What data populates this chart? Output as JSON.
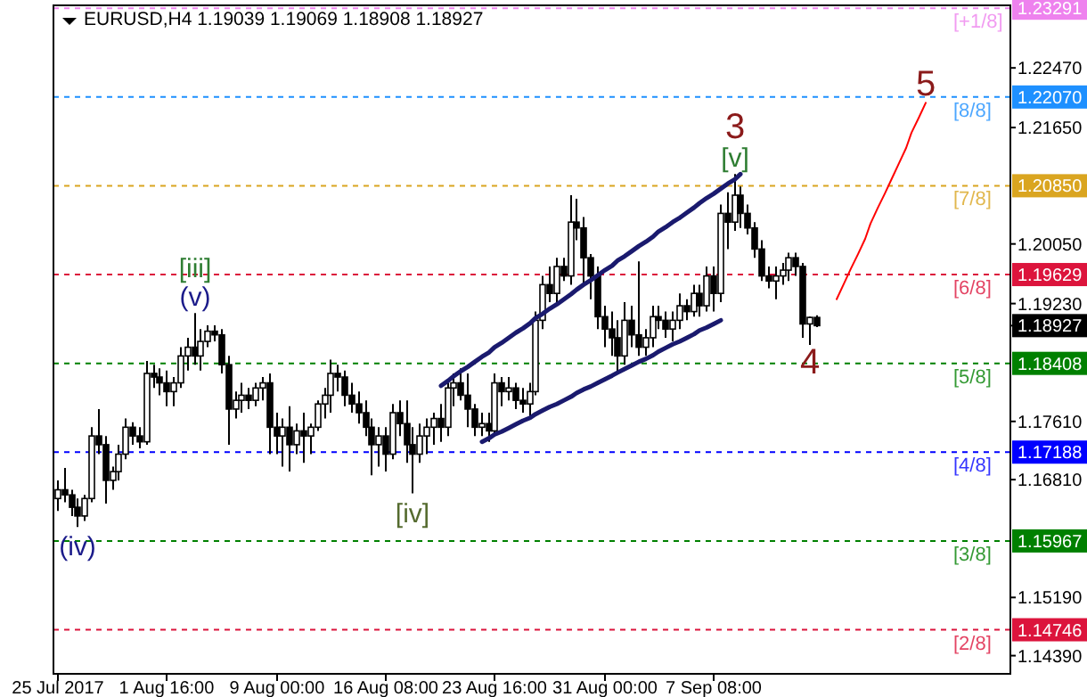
{
  "chart_data": {
    "type": "candlestick",
    "title": "EURUSD,H4  1.19039 1.19069 1.18908 1.18927",
    "color": "#000000",
    "grid": false,
    "categories": [
      "25 Jul 2017",
      null,
      null,
      null,
      null,
      null,
      null,
      null,
      null,
      null,
      null,
      null,
      null,
      null,
      null,
      null,
      "1 Aug 16:00",
      null,
      null,
      null,
      null,
      null,
      null,
      null,
      null,
      null,
      null,
      null,
      null,
      null,
      null,
      null,
      "9 Aug 00:00",
      null,
      null,
      null,
      null,
      null,
      null,
      null,
      null,
      null,
      null,
      null,
      null,
      null,
      null,
      null,
      "16 Aug 08:00",
      null,
      null,
      null,
      null,
      null,
      null,
      null,
      null,
      null,
      null,
      null,
      null,
      null,
      null,
      null,
      "23 Aug 16:00",
      null,
      null,
      null,
      null,
      null,
      null,
      null,
      null,
      null,
      null,
      null,
      null,
      null,
      null,
      null,
      "31 Aug 00:00",
      null,
      null,
      null,
      null,
      null,
      null,
      null,
      null,
      null,
      null,
      null,
      null,
      null,
      null,
      null,
      "7 Sep 08:00",
      null,
      null,
      null,
      null,
      null,
      null,
      null,
      null,
      null,
      null,
      null,
      null,
      null,
      null,
      null,
      null,
      null,
      null,
      null,
      null,
      null,
      null,
      null,
      null,
      null,
      null,
      null,
      null,
      null,
      null,
      null,
      null,
      null,
      null,
      null,
      null,
      null,
      null,
      null,
      null,
      null,
      null,
      null
    ],
    "ohlc": [
      [
        1.1655,
        1.168,
        1.1638,
        1.1667
      ],
      [
        1.1667,
        1.1697,
        1.165,
        1.166
      ],
      [
        1.166,
        1.1667,
        1.1631,
        1.1643
      ],
      [
        1.1643,
        1.1655,
        1.1616,
        1.1631
      ],
      [
        1.1631,
        1.166,
        1.1624,
        1.1655
      ],
      [
        1.1655,
        1.1753,
        1.165,
        1.1741
      ],
      [
        1.1741,
        1.1778,
        1.1716,
        1.1729
      ],
      [
        1.1729,
        1.1741,
        1.1648,
        1.168
      ],
      [
        1.168,
        1.1699,
        1.1667,
        1.1692
      ],
      [
        1.1692,
        1.1729,
        1.168,
        1.1716
      ],
      [
        1.1716,
        1.1765,
        1.1709,
        1.1753
      ],
      [
        1.1753,
        1.176,
        1.1729,
        1.1741
      ],
      [
        1.1741,
        1.1753,
        1.1724,
        1.1733
      ],
      [
        1.1733,
        1.1844,
        1.1729,
        1.1827
      ],
      [
        1.1827,
        1.1839,
        1.1807,
        1.1822
      ],
      [
        1.1822,
        1.1834,
        1.1797,
        1.1814
      ],
      [
        1.1814,
        1.1831,
        1.1782,
        1.1802
      ],
      [
        1.1802,
        1.1822,
        1.1782,
        1.1814
      ],
      [
        1.1814,
        1.1863,
        1.1807,
        1.1851
      ],
      [
        1.1851,
        1.1876,
        1.1831,
        1.1863
      ],
      [
        1.1863,
        1.191,
        1.1839,
        1.1851
      ],
      [
        1.1851,
        1.1888,
        1.1831,
        1.1871
      ],
      [
        1.1871,
        1.1893,
        1.1863,
        1.1885
      ],
      [
        1.1885,
        1.1893,
        1.1871,
        1.188
      ],
      [
        1.188,
        1.1888,
        1.1827,
        1.1839
      ],
      [
        1.1839,
        1.1851,
        1.1729,
        1.1778
      ],
      [
        1.1778,
        1.1802,
        1.1765,
        1.179
      ],
      [
        1.179,
        1.1814,
        1.1773,
        1.1797
      ],
      [
        1.1797,
        1.1807,
        1.1778,
        1.179
      ],
      [
        1.179,
        1.1814,
        1.1782,
        1.1807
      ],
      [
        1.1807,
        1.1822,
        1.179,
        1.1814
      ],
      [
        1.1814,
        1.1827,
        1.1716,
        1.1753
      ],
      [
        1.1753,
        1.1773,
        1.1716,
        1.1741
      ],
      [
        1.1741,
        1.1765,
        1.1699,
        1.1753
      ],
      [
        1.1753,
        1.1782,
        1.1692,
        1.1729
      ],
      [
        1.1729,
        1.1758,
        1.1716,
        1.1748
      ],
      [
        1.1748,
        1.1773,
        1.1704,
        1.1741
      ],
      [
        1.1741,
        1.1758,
        1.1716,
        1.1753
      ],
      [
        1.1753,
        1.179,
        1.1748,
        1.1785
      ],
      [
        1.1785,
        1.1807,
        1.1765,
        1.1797
      ],
      [
        1.1797,
        1.1846,
        1.1773,
        1.1827
      ],
      [
        1.1827,
        1.1839,
        1.1802,
        1.1822
      ],
      [
        1.1822,
        1.1831,
        1.1782,
        1.1797
      ],
      [
        1.1797,
        1.1814,
        1.1773,
        1.1785
      ],
      [
        1.1785,
        1.1802,
        1.1758,
        1.1773
      ],
      [
        1.1773,
        1.179,
        1.1741,
        1.1753
      ],
      [
        1.1753,
        1.1765,
        1.1687,
        1.1729
      ],
      [
        1.1729,
        1.1753,
        1.1699,
        1.1741
      ],
      [
        1.1741,
        1.1753,
        1.1692,
        1.1716
      ],
      [
        1.1716,
        1.1785,
        1.1709,
        1.1773
      ],
      [
        1.1773,
        1.179,
        1.1741,
        1.1758
      ],
      [
        1.1758,
        1.179,
        1.1704,
        1.1729
      ],
      [
        1.1729,
        1.1753,
        1.1662,
        1.1716
      ],
      [
        1.1716,
        1.1758,
        1.1704,
        1.1741
      ],
      [
        1.1741,
        1.1765,
        1.1716,
        1.1753
      ],
      [
        1.1753,
        1.1773,
        1.1729,
        1.1765
      ],
      [
        1.1765,
        1.1785,
        1.1733,
        1.1753
      ],
      [
        1.1753,
        1.1814,
        1.1741,
        1.1807
      ],
      [
        1.1807,
        1.1827,
        1.1782,
        1.1814
      ],
      [
        1.1814,
        1.1834,
        1.179,
        1.1797
      ],
      [
        1.1797,
        1.1827,
        1.1753,
        1.1778
      ],
      [
        1.1778,
        1.1785,
        1.1741,
        1.1753
      ],
      [
        1.1753,
        1.1773,
        1.1741,
        1.1758
      ],
      [
        1.1758,
        1.1773,
        1.1733,
        1.1748
      ],
      [
        1.1748,
        1.1827,
        1.1741,
        1.1814
      ],
      [
        1.1814,
        1.1822,
        1.1782,
        1.1802
      ],
      [
        1.1802,
        1.1822,
        1.179,
        1.1807
      ],
      [
        1.1807,
        1.1814,
        1.1778,
        1.179
      ],
      [
        1.179,
        1.1807,
        1.1773,
        1.1785
      ],
      [
        1.1785,
        1.1814,
        1.1765,
        1.1802
      ],
      [
        1.1802,
        1.1912,
        1.1797,
        1.19
      ],
      [
        1.19,
        1.1961,
        1.1888,
        1.1949
      ],
      [
        1.1949,
        1.1974,
        1.1925,
        1.1937
      ],
      [
        1.1937,
        1.1986,
        1.1925,
        1.1974
      ],
      [
        1.1974,
        1.1986,
        1.1954,
        1.1961
      ],
      [
        1.1961,
        1.2072,
        1.1949,
        1.2035
      ],
      [
        1.2035,
        1.2067,
        1.201,
        1.2027
      ],
      [
        1.2027,
        1.2042,
        1.1949,
        1.1986
      ],
      [
        1.1986,
        1.1991,
        1.1929,
        1.1961
      ],
      [
        1.1961,
        1.1974,
        1.1888,
        1.1905
      ],
      [
        1.1905,
        1.192,
        1.1863,
        1.1888
      ],
      [
        1.1888,
        1.1912,
        1.1851,
        1.1876
      ],
      [
        1.1876,
        1.19,
        1.1827,
        1.1851
      ],
      [
        1.1851,
        1.1925,
        1.1839,
        1.19
      ],
      [
        1.19,
        1.192,
        1.1863,
        1.188
      ],
      [
        1.188,
        1.1981,
        1.1851,
        1.1863
      ],
      [
        1.1863,
        1.1888,
        1.1851,
        1.1876
      ],
      [
        1.1876,
        1.192,
        1.1863,
        1.1905
      ],
      [
        1.1905,
        1.192,
        1.1888,
        1.19
      ],
      [
        1.19,
        1.1912,
        1.1876,
        1.1888
      ],
      [
        1.1888,
        1.1912,
        1.1871,
        1.19
      ],
      [
        1.19,
        1.1937,
        1.1888,
        1.192
      ],
      [
        1.192,
        1.1929,
        1.19,
        1.1912
      ],
      [
        1.1912,
        1.1949,
        1.1905,
        1.1937
      ],
      [
        1.1937,
        1.1949,
        1.1905,
        1.192
      ],
      [
        1.192,
        1.1974,
        1.1912,
        1.1961
      ],
      [
        1.1961,
        1.1974,
        1.1912,
        1.1937
      ],
      [
        1.1937,
        1.2059,
        1.1925,
        1.2047
      ],
      [
        1.2047,
        1.2076,
        1.1998,
        1.2035
      ],
      [
        1.2035,
        1.2101,
        1.2023,
        1.2072
      ],
      [
        1.2072,
        1.2084,
        1.2027,
        1.2047
      ],
      [
        1.2047,
        1.2059,
        1.2018,
        1.2027
      ],
      [
        1.2027,
        1.2035,
        1.1986,
        1.1998
      ],
      [
        1.1998,
        1.201,
        1.1954,
        1.1961
      ],
      [
        1.1961,
        1.1974,
        1.1944,
        1.1954
      ],
      [
        1.1954,
        1.1974,
        1.1929,
        1.1961
      ],
      [
        1.1961,
        1.1979,
        1.1949,
        1.1969
      ],
      [
        1.1969,
        1.1993,
        1.1954,
        1.1986
      ],
      [
        1.1986,
        1.1993,
        1.1961,
        1.1974
      ],
      [
        1.1974,
        1.1979,
        1.1876,
        1.1895
      ],
      [
        1.1895,
        1.1905,
        1.1866,
        1.1904
      ],
      [
        1.19039,
        1.19069,
        1.18908,
        1.18927
      ],
      null,
      null,
      null,
      null,
      null,
      null,
      null,
      null,
      null,
      null,
      null,
      null,
      null,
      null,
      null,
      null,
      null,
      null,
      null,
      null,
      null,
      null,
      null,
      null,
      null,
      null,
      null,
      null
    ],
    "series": [
      {
        "type": "line",
        "color": "#1a1a6e",
        "values": [
          null,
          null,
          null,
          null,
          null,
          null,
          null,
          null,
          null,
          null,
          null,
          null,
          null,
          null,
          null,
          null,
          null,
          null,
          null,
          null,
          null,
          null,
          null,
          null,
          null,
          null,
          null,
          null,
          null,
          null,
          null,
          null,
          null,
          null,
          null,
          null,
          null,
          null,
          null,
          null,
          null,
          null,
          null,
          null,
          null,
          null,
          null,
          null,
          null,
          null,
          null,
          null,
          null,
          null,
          null,
          null,
          1.181,
          1.1817,
          1.1823,
          1.183,
          1.1836,
          1.1843,
          1.185,
          1.1856,
          1.1863,
          1.1869,
          1.1876,
          1.1883,
          1.1889,
          1.1896,
          1.1903,
          1.1909,
          1.1916,
          1.1922,
          1.1929,
          1.1936,
          1.1942,
          1.1949,
          1.1955,
          1.1962,
          1.1969,
          1.1975,
          1.1982,
          1.1988,
          1.1995,
          1.2002,
          1.2008,
          1.2015,
          1.2022,
          1.2028,
          1.2035,
          1.2041,
          1.2048,
          1.2055,
          1.2061,
          1.2068,
          1.2074,
          1.2081,
          1.2088,
          1.2094,
          1.2101,
          null,
          null,
          null,
          null,
          null,
          null,
          null,
          null,
          null,
          null,
          null,
          null,
          null,
          null,
          null,
          null,
          null,
          null,
          null,
          null,
          null,
          null,
          null,
          null,
          null,
          null,
          null,
          null,
          null,
          null,
          null,
          null,
          null,
          null,
          null,
          null,
          null,
          null,
          null
        ]
      },
      {
        "type": "line",
        "color": "#1a1a6e",
        "values": [
          null,
          null,
          null,
          null,
          null,
          null,
          null,
          null,
          null,
          null,
          null,
          null,
          null,
          null,
          null,
          null,
          null,
          null,
          null,
          null,
          null,
          null,
          null,
          null,
          null,
          null,
          null,
          null,
          null,
          null,
          null,
          null,
          null,
          null,
          null,
          null,
          null,
          null,
          null,
          null,
          null,
          null,
          null,
          null,
          null,
          null,
          null,
          null,
          null,
          null,
          null,
          null,
          null,
          null,
          null,
          null,
          null,
          null,
          null,
          null,
          null,
          null,
          1.1733,
          1.1738,
          1.1743,
          1.1747,
          1.1752,
          1.1757,
          1.1762,
          1.1766,
          1.1771,
          1.1776,
          1.1781,
          1.1785,
          1.179,
          1.1795,
          1.18,
          1.1805,
          1.1809,
          1.1814,
          1.1819,
          1.1824,
          1.1828,
          1.1833,
          1.1838,
          1.1843,
          1.1847,
          1.1852,
          1.1857,
          1.1862,
          1.1867,
          1.1871,
          1.1876,
          1.1881,
          1.1886,
          1.189,
          1.1895,
          1.19,
          null,
          null,
          null,
          null,
          null,
          null,
          null,
          null,
          null,
          null,
          null,
          null,
          null,
          null,
          null,
          null,
          null,
          null,
          null,
          null,
          null,
          null,
          null,
          null,
          null,
          null,
          null,
          null,
          null,
          null,
          null,
          null,
          null,
          null,
          null,
          null,
          null,
          null,
          null,
          null,
          null,
          null
        ]
      },
      {
        "type": "line",
        "color": "#ff0000",
        "values": [
          null,
          null,
          null,
          null,
          null,
          null,
          null,
          null,
          null,
          null,
          null,
          null,
          null,
          null,
          null,
          null,
          null,
          null,
          null,
          null,
          null,
          null,
          null,
          null,
          null,
          null,
          null,
          null,
          null,
          null,
          null,
          null,
          null,
          null,
          null,
          null,
          null,
          null,
          null,
          null,
          null,
          null,
          null,
          null,
          null,
          null,
          null,
          null,
          null,
          null,
          null,
          null,
          null,
          null,
          null,
          null,
          null,
          null,
          null,
          null,
          null,
          null,
          null,
          null,
          null,
          null,
          null,
          null,
          null,
          null,
          null,
          null,
          null,
          null,
          null,
          null,
          null,
          null,
          null,
          null,
          null,
          null,
          null,
          null,
          null,
          null,
          null,
          null,
          null,
          null,
          null,
          null,
          null,
          null,
          null,
          null,
          null,
          null,
          null,
          null,
          null,
          null,
          null,
          null,
          null,
          null,
          null,
          null,
          null,
          null,
          null,
          null,
          null,
          null,
          1.1929,
          1.195,
          1.1971,
          1.1991,
          1.2012,
          1.2033,
          1.2054,
          1.2074,
          1.2095,
          1.2116,
          1.2137,
          1.2158,
          1.2178,
          1.2199,
          null,
          null,
          null,
          null,
          null,
          null,
          null,
          null,
          null,
          null,
          null,
          null
        ]
      }
    ],
    "ylim": [
      1.1414,
      1.2333
    ],
    "yticks": [
      {
        "value": 1.2247,
        "label": "1.22470"
      },
      {
        "value": 1.2165,
        "label": "1.21650"
      },
      {
        "value": 1.2005,
        "label": "1.20050"
      },
      {
        "value": 1.1923,
        "label": "1.19230"
      },
      {
        "value": 1.18927,
        "label": "1.18927"
      },
      {
        "value": 1.1761,
        "label": "1.17610"
      },
      {
        "value": 1.1681,
        "label": "1.16810"
      },
      {
        "value": 1.1519,
        "label": "1.15190"
      },
      {
        "value": 1.1439,
        "label": "1.14390"
      }
    ],
    "ref_lines": [
      {
        "axis": "y",
        "value": 1.23291,
        "label": "1.23291",
        "color": "#ee82ee",
        "line_style": "dashed"
      },
      {
        "axis": "y",
        "value": 1.2207,
        "label": "1.22070",
        "color": "#1e90ff",
        "line_style": "dashed"
      },
      {
        "axis": "y",
        "value": 1.2085,
        "label": "1.20850",
        "color": "#daa520",
        "line_style": "dashed"
      },
      {
        "axis": "y",
        "value": 1.19629,
        "label": "1.19629",
        "color": "#dc143c",
        "line_style": "dashed"
      },
      {
        "axis": "y",
        "value": 1.18408,
        "label": "1.18408",
        "color": "#008000",
        "line_style": "dashed"
      },
      {
        "axis": "y",
        "value": 1.17188,
        "label": "1.17188",
        "color": "#0000ff",
        "line_style": "dashed"
      },
      {
        "axis": "y",
        "value": 1.15967,
        "label": "1.15967",
        "color": "#008000",
        "line_style": "dashed"
      },
      {
        "axis": "y",
        "value": 1.14746,
        "label": "1.14746",
        "color": "#dc143c",
        "line_style": "dashed"
      }
    ],
    "annotations": [
      {
        "text": "(iv)",
        "y": 1.1616
      },
      {
        "text": "(v)",
        "y": 1.191
      },
      {
        "text": "[iii]",
        "y": 1.191
      },
      {
        "text": "[iv]",
        "y": 1.1662
      },
      {
        "text": "[v]",
        "y": 1.2101
      },
      {
        "text": "3",
        "y": 1.2101
      },
      {
        "text": "4",
        "y": 1.1866
      },
      {
        "text": "5",
        "y": 1.2199
      },
      {
        "text": "[+1/8]",
        "y": 1.23291
      },
      {
        "text": "[8/8]",
        "y": 1.2207
      },
      {
        "text": "[7/8]",
        "y": 1.2085
      },
      {
        "text": "[6/8]",
        "y": 1.19629
      },
      {
        "text": "[5/8]",
        "y": 1.18408
      },
      {
        "text": "[4/8]",
        "y": 1.17188
      },
      {
        "text": "[3/8]",
        "y": 1.15967
      },
      {
        "text": "[2/8]",
        "y": 1.14746
      }
    ]
  }
}
